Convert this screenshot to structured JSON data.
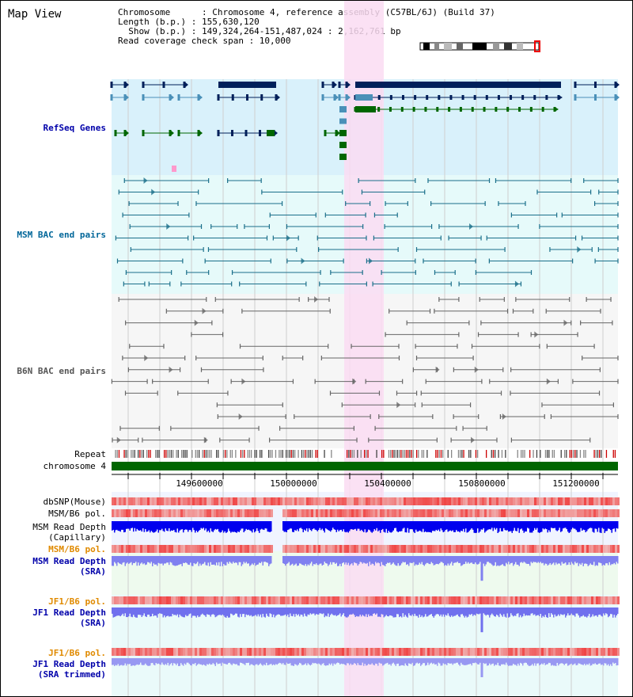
{
  "panel_title": "Map View",
  "info": {
    "chromosome_line": "Chromosome      : Chromosome 4, reference assembly (C57BL/6J) (Build 37)",
    "length_line": "Length (b.p.) : 155,630,120",
    "show_line": "  Show (b.p.) : 149,324,264-151,487,024 : 2,162,761 bp",
    "coverage_line": "Read coverage check span : 10,000"
  },
  "tracks": {
    "refseq": {
      "label": "RefSeq Genes",
      "color": "#0000aa"
    },
    "msm_bac": {
      "label": "MSM BAC end pairs",
      "color": "#006699"
    },
    "b6n_bac": {
      "label": "B6N BAC end pairs",
      "color": "#555555"
    },
    "repeat": {
      "label": "Repeat"
    },
    "chromosome": {
      "label": "chromosome 4"
    },
    "dbsnp": {
      "label": "dbSNP(Mouse)"
    },
    "msm_b6_pol_1": {
      "label": "MSM/B6 pol."
    },
    "msm_depth_cap": {
      "label": "MSM Read Depth",
      "sublabel": "(Capillary)"
    },
    "msm_b6_pol_2": {
      "label": "MSM/B6 pol.",
      "color": "#e08a00"
    },
    "msm_depth_sra": {
      "label": "MSM Read Depth",
      "sublabel": "(SRA)",
      "color": "#0000aa"
    },
    "jf1_b6_pol_1": {
      "label": "JF1/B6 pol.",
      "color": "#e08a00"
    },
    "jf1_depth_sra": {
      "label": "JF1 Read Depth",
      "sublabel": "(SRA)",
      "color": "#0000aa"
    },
    "jf1_b6_pol_2": {
      "label": "JF1/B6 pol.",
      "color": "#e08a00"
    },
    "jf1_depth_trim": {
      "label": "JF1 Read Depth",
      "sublabel": "(SRA trimmed)",
      "color": "#0000aa"
    }
  },
  "ruler": {
    "ticks": [
      "149600000",
      "150000000",
      "150400000",
      "150800000",
      "151200000"
    ]
  },
  "colors": {
    "refseq_bg": "#d9f1fb",
    "msm_bg": "#e6fafa",
    "b6n_bg": "#f6f6f6",
    "highlight": "#fadcf2",
    "chrom_bar": "#006600",
    "gene_dark": "#00205a",
    "gene_mid": "#4a90b8",
    "gene_green": "#006600",
    "depth_capillary": "#0000ee",
    "depth_sra": "#8080f0",
    "pol_red": "#f06060"
  }
}
